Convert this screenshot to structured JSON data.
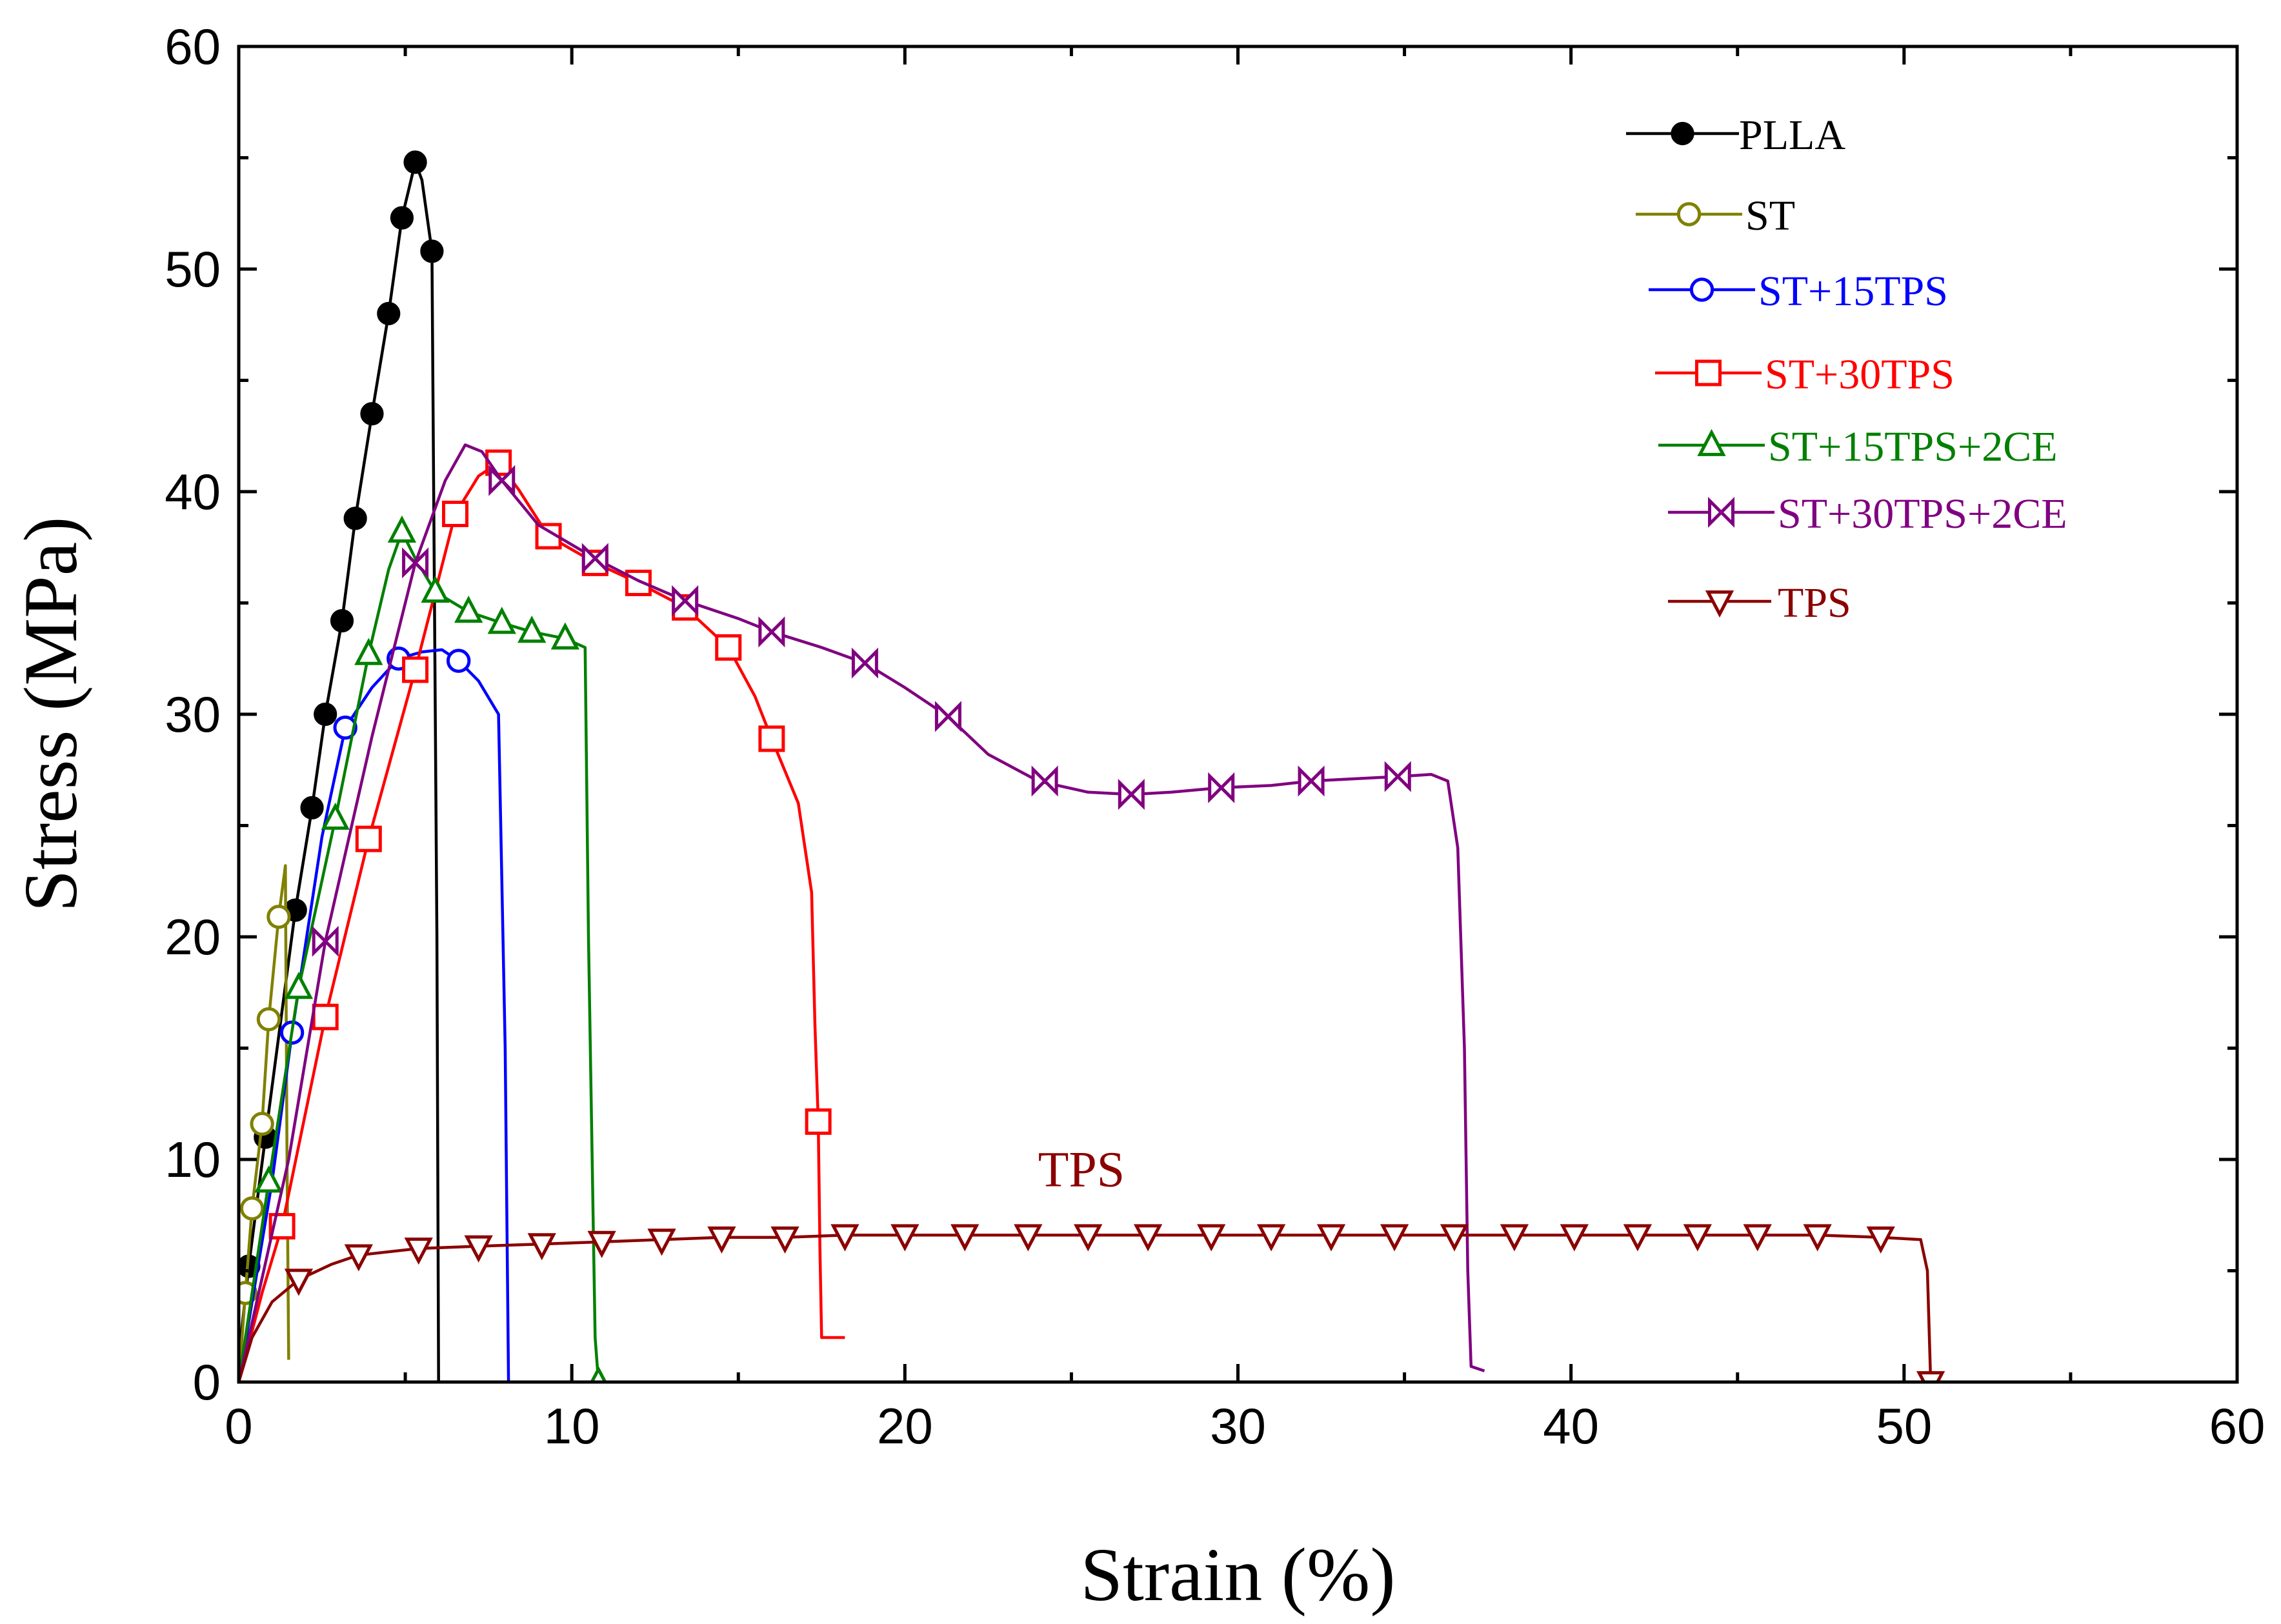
{
  "chart_data": {
    "type": "line",
    "xlabel": "Strain (%)",
    "ylabel": "Stress (MPa)",
    "xlim": [
      0,
      60
    ],
    "ylim": [
      0,
      60
    ],
    "xticks": [
      0,
      10,
      20,
      30,
      40,
      50,
      60
    ],
    "yticks": [
      0,
      10,
      20,
      30,
      40,
      50,
      60
    ],
    "grid": false,
    "legend_position": "top-right",
    "annotations": [
      {
        "text": "TPS",
        "x": 25.3,
        "y": 8.8,
        "color": "#8b0000"
      }
    ],
    "series": [
      {
        "name": "PLLA",
        "color": "#000000",
        "marker": "filled-circle",
        "points": [
          [
            0,
            0
          ],
          [
            0.1,
            2.5
          ],
          [
            0.3,
            5.2
          ],
          [
            0.8,
            11
          ],
          [
            1.7,
            21.2
          ],
          [
            2.2,
            25.8
          ],
          [
            2.6,
            30
          ],
          [
            3.1,
            34.2
          ],
          [
            3.5,
            38.8
          ],
          [
            4.0,
            43.5
          ],
          [
            4.5,
            48
          ],
          [
            4.9,
            52.3
          ],
          [
            5.3,
            54.8
          ],
          [
            5.5,
            54
          ],
          [
            5.8,
            50.8
          ],
          [
            5.95,
            20
          ],
          [
            6.0,
            0
          ]
        ],
        "markers": [
          [
            0.3,
            5.2
          ],
          [
            0.8,
            11
          ],
          [
            1.7,
            21.2
          ],
          [
            2.2,
            25.8
          ],
          [
            2.6,
            30
          ],
          [
            3.1,
            34.2
          ],
          [
            3.5,
            38.8
          ],
          [
            4.0,
            43.5
          ],
          [
            4.5,
            48
          ],
          [
            4.9,
            52.3
          ],
          [
            5.3,
            54.8
          ],
          [
            5.8,
            50.8
          ]
        ]
      },
      {
        "name": "ST",
        "color": "#808000",
        "marker": "open-circle",
        "points": [
          [
            0,
            0
          ],
          [
            0.2,
            4
          ],
          [
            0.4,
            7.8
          ],
          [
            0.7,
            11.6
          ],
          [
            0.9,
            16.3
          ],
          [
            1.2,
            20.9
          ],
          [
            1.4,
            23.2
          ],
          [
            1.45,
            10
          ],
          [
            1.5,
            1
          ]
        ],
        "markers": [
          [
            0.2,
            4
          ],
          [
            0.4,
            7.8
          ],
          [
            0.7,
            11.6
          ],
          [
            0.9,
            16.3
          ],
          [
            1.2,
            20.9
          ]
        ]
      },
      {
        "name": "ST+15TPS",
        "color": "#0000ff",
        "marker": "open-circle",
        "points": [
          [
            0,
            0
          ],
          [
            1.0,
            9
          ],
          [
            1.6,
            15.7
          ],
          [
            2.5,
            24.5
          ],
          [
            3.2,
            29.4
          ],
          [
            4.0,
            31.2
          ],
          [
            4.8,
            32.5
          ],
          [
            5.5,
            32.8
          ],
          [
            6.1,
            32.9
          ],
          [
            6.6,
            32.4
          ],
          [
            7.2,
            31.5
          ],
          [
            7.8,
            30
          ],
          [
            8.0,
            15
          ],
          [
            8.1,
            0
          ]
        ],
        "markers": [
          [
            1.6,
            15.7
          ],
          [
            3.2,
            29.4
          ],
          [
            4.8,
            32.5
          ],
          [
            6.6,
            32.4
          ]
        ]
      },
      {
        "name": "ST+30TPS",
        "color": "#ff0000",
        "marker": "open-square",
        "points": [
          [
            0,
            0
          ],
          [
            0.7,
            4
          ],
          [
            1.3,
            7
          ],
          [
            2.6,
            16.4
          ],
          [
            3.9,
            24.4
          ],
          [
            5.3,
            32
          ],
          [
            6.5,
            39
          ],
          [
            7.2,
            40.7
          ],
          [
            7.8,
            41.3
          ],
          [
            8.4,
            40.1
          ],
          [
            9.3,
            38
          ],
          [
            10.7,
            36.8
          ],
          [
            12.0,
            35.9
          ],
          [
            13.4,
            34.8
          ],
          [
            14.7,
            33
          ],
          [
            15.5,
            30.8
          ],
          [
            16.0,
            28.9
          ],
          [
            16.8,
            26
          ],
          [
            17.2,
            22
          ],
          [
            17.3,
            16
          ],
          [
            17.4,
            11.7
          ],
          [
            17.45,
            6
          ],
          [
            17.5,
            2
          ],
          [
            18.2,
            2
          ]
        ],
        "markers": [
          [
            1.3,
            7
          ],
          [
            2.6,
            16.4
          ],
          [
            3.9,
            24.4
          ],
          [
            5.3,
            32
          ],
          [
            6.5,
            39
          ],
          [
            7.8,
            41.3
          ],
          [
            9.3,
            38
          ],
          [
            10.7,
            36.8
          ],
          [
            12.0,
            35.9
          ],
          [
            13.4,
            34.8
          ],
          [
            14.7,
            33
          ],
          [
            16.0,
            28.9
          ],
          [
            17.4,
            11.7
          ]
        ]
      },
      {
        "name": "ST+15TPS+2CE",
        "color": "#008000",
        "marker": "open-triangle-up",
        "points": [
          [
            0,
            0
          ],
          [
            0.9,
            9
          ],
          [
            1.8,
            17.7
          ],
          [
            2.9,
            25.3
          ],
          [
            3.9,
            32.7
          ],
          [
            4.5,
            36.5
          ],
          [
            4.9,
            38.2
          ],
          [
            5.3,
            37
          ],
          [
            5.9,
            35.5
          ],
          [
            6.9,
            34.6
          ],
          [
            7.9,
            34.1
          ],
          [
            8.8,
            33.7
          ],
          [
            9.8,
            33.4
          ],
          [
            10.4,
            33
          ],
          [
            10.5,
            20
          ],
          [
            10.7,
            2
          ],
          [
            10.8,
            0
          ]
        ],
        "markers": [
          [
            0.9,
            9
          ],
          [
            1.8,
            17.7
          ],
          [
            2.9,
            25.3
          ],
          [
            3.9,
            32.7
          ],
          [
            4.9,
            38.2
          ],
          [
            5.9,
            35.5
          ],
          [
            6.9,
            34.6
          ],
          [
            7.9,
            34.1
          ],
          [
            8.8,
            33.7
          ],
          [
            9.8,
            33.4
          ],
          [
            10.8,
            0
          ]
        ]
      },
      {
        "name": "ST+30TPS+2CE",
        "color": "#800080",
        "marker": "open-bowtie",
        "points": [
          [
            0,
            0
          ],
          [
            1.5,
            10
          ],
          [
            2.6,
            19.8
          ],
          [
            4.0,
            29
          ],
          [
            5.3,
            36.8
          ],
          [
            6.2,
            40.5
          ],
          [
            6.8,
            42.1
          ],
          [
            7.3,
            41.8
          ],
          [
            7.9,
            40.5
          ],
          [
            9.0,
            38.5
          ],
          [
            10.7,
            37
          ],
          [
            12.0,
            36
          ],
          [
            13.4,
            35.1
          ],
          [
            15.0,
            34.3
          ],
          [
            16.0,
            33.7
          ],
          [
            17.5,
            33
          ],
          [
            18.8,
            32.3
          ],
          [
            20.0,
            31.2
          ],
          [
            21.3,
            29.9
          ],
          [
            22.5,
            28.2
          ],
          [
            24.0,
            27
          ],
          [
            25.5,
            26.5
          ],
          [
            26.8,
            26.4
          ],
          [
            28.0,
            26.5
          ],
          [
            29.5,
            26.7
          ],
          [
            31.0,
            26.8
          ],
          [
            32.2,
            27
          ],
          [
            33.5,
            27.1
          ],
          [
            34.8,
            27.2
          ],
          [
            35.8,
            27.3
          ],
          [
            36.3,
            27
          ],
          [
            36.6,
            24
          ],
          [
            36.8,
            15
          ],
          [
            36.9,
            5
          ],
          [
            37.0,
            0.7
          ],
          [
            37.4,
            0.5
          ]
        ],
        "markers": [
          [
            2.6,
            19.8
          ],
          [
            5.3,
            36.8
          ],
          [
            7.9,
            40.5
          ],
          [
            10.7,
            37
          ],
          [
            13.4,
            35.1
          ],
          [
            16.0,
            33.7
          ],
          [
            18.8,
            32.3
          ],
          [
            21.3,
            29.9
          ],
          [
            24.2,
            27
          ],
          [
            26.8,
            26.4
          ],
          [
            29.5,
            26.7
          ],
          [
            32.2,
            27
          ],
          [
            34.8,
            27.2
          ]
        ]
      },
      {
        "name": "TPS",
        "color": "#8b0000",
        "marker": "open-triangle-down",
        "points": [
          [
            0,
            0
          ],
          [
            0.4,
            2
          ],
          [
            1.0,
            3.6
          ],
          [
            1.8,
            4.6
          ],
          [
            2.8,
            5.3
          ],
          [
            3.6,
            5.7
          ],
          [
            5.4,
            6
          ],
          [
            7.2,
            6.1
          ],
          [
            9.1,
            6.2
          ],
          [
            10.9,
            6.3
          ],
          [
            12.7,
            6.4
          ],
          [
            14.5,
            6.5
          ],
          [
            16.4,
            6.5
          ],
          [
            18.2,
            6.6
          ],
          [
            20.0,
            6.6
          ],
          [
            21.8,
            6.6
          ],
          [
            23.7,
            6.6
          ],
          [
            25.5,
            6.6
          ],
          [
            27.3,
            6.6
          ],
          [
            29.2,
            6.6
          ],
          [
            31.0,
            6.6
          ],
          [
            32.8,
            6.6
          ],
          [
            34.7,
            6.6
          ],
          [
            36.5,
            6.6
          ],
          [
            38.3,
            6.6
          ],
          [
            40.1,
            6.6
          ],
          [
            42.0,
            6.6
          ],
          [
            43.8,
            6.6
          ],
          [
            45.6,
            6.6
          ],
          [
            47.4,
            6.6
          ],
          [
            49.3,
            6.5
          ],
          [
            50.5,
            6.4
          ],
          [
            50.7,
            5
          ],
          [
            50.8,
            0
          ]
        ],
        "markers": [
          [
            1.8,
            4.6
          ],
          [
            3.6,
            5.7
          ],
          [
            5.4,
            6
          ],
          [
            7.2,
            6.1
          ],
          [
            9.1,
            6.2
          ],
          [
            10.9,
            6.3
          ],
          [
            12.7,
            6.4
          ],
          [
            14.5,
            6.5
          ],
          [
            16.4,
            6.5
          ],
          [
            18.2,
            6.6
          ],
          [
            20.0,
            6.6
          ],
          [
            21.8,
            6.6
          ],
          [
            23.7,
            6.6
          ],
          [
            25.5,
            6.6
          ],
          [
            27.3,
            6.6
          ],
          [
            29.2,
            6.6
          ],
          [
            31.0,
            6.6
          ],
          [
            32.8,
            6.6
          ],
          [
            34.7,
            6.6
          ],
          [
            36.5,
            6.6
          ],
          [
            38.3,
            6.6
          ],
          [
            40.1,
            6.6
          ],
          [
            42.0,
            6.6
          ],
          [
            43.8,
            6.6
          ],
          [
            45.6,
            6.6
          ],
          [
            47.4,
            6.6
          ],
          [
            49.3,
            6.5
          ],
          [
            50.8,
            0
          ]
        ]
      }
    ]
  }
}
